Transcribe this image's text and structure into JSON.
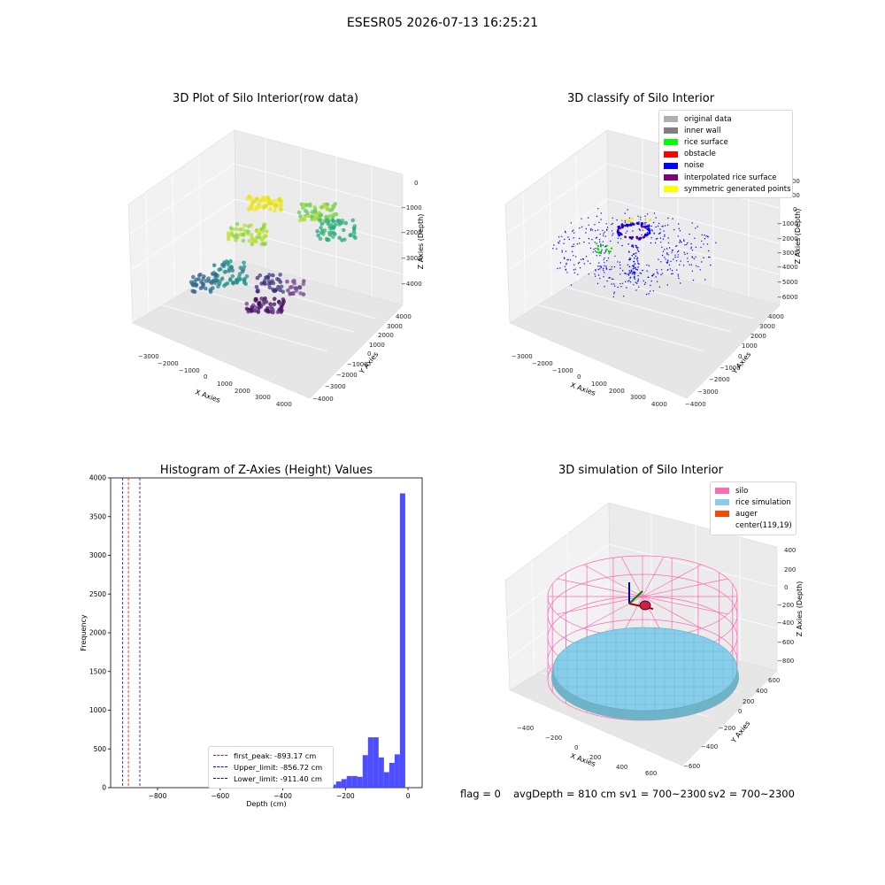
{
  "suptitle": "ESESR05 2026-07-13 16:25:21",
  "panels": {
    "raw": {
      "title": "3D Plot of Silo Interior(row data)",
      "xlabel": "X Axies",
      "ylabel": "Y Axies",
      "zlabel": "Z Axies (Depth)",
      "xticks": [
        "−3000",
        "−2000",
        "−1000",
        "0",
        "1000",
        "2000",
        "3000",
        "4000"
      ],
      "yticks": [
        "−4000",
        "−3000",
        "−2000",
        "−1000",
        "0",
        "1000",
        "2000",
        "3000",
        "4000"
      ],
      "zticks": [
        "−4000",
        "−3000",
        "−2000",
        "−1000",
        "0"
      ]
    },
    "classify": {
      "title": "3D classify of Silo Interior",
      "xlabel": "X Axies",
      "ylabel": "Y Axies",
      "zlabel": "Z Axies (Depth)",
      "xticks": [
        "−3000",
        "−2000",
        "−1000",
        "0",
        "1000",
        "2000",
        "3000",
        "4000"
      ],
      "yticks": [
        "−4000",
        "−3000",
        "−2000",
        "−1000",
        "0",
        "1000",
        "2000",
        "3000",
        "4000"
      ],
      "zticks": [
        "−6000",
        "−5000",
        "−4000",
        "−3000",
        "−2000",
        "−1000",
        "0",
        "1000",
        "2000"
      ],
      "legend": [
        {
          "label": "original data",
          "color": "#b0b0b0"
        },
        {
          "label": "inner wall",
          "color": "#808080"
        },
        {
          "label": "rice surface",
          "color": "#00ff00"
        },
        {
          "label": "obstacle",
          "color": "#ff0000"
        },
        {
          "label": "noise",
          "color": "#0000ff"
        },
        {
          "label": "interpolated rice surface",
          "color": "#800080"
        },
        {
          "label": "symmetric generated points",
          "color": "#ffff00"
        }
      ]
    },
    "simulation": {
      "title": "3D simulation of Silo Interior",
      "xlabel": "X Axies",
      "ylabel": "Y Axies",
      "zlabel": "Z Axies (Depth)",
      "xticks": [
        "−400",
        "−200",
        "0",
        "200",
        "400",
        "600"
      ],
      "yticks": [
        "−600",
        "−400",
        "−200",
        "0",
        "200",
        "400",
        "600"
      ],
      "zticks": [
        "−800",
        "−600",
        "−400",
        "−200",
        "0",
        "200",
        "400"
      ],
      "legend": [
        {
          "label": "silo",
          "color": "#ff69b4"
        },
        {
          "label": "rice simulation",
          "color": "#87ceeb"
        },
        {
          "label": "auger",
          "color": "#ff4500"
        },
        {
          "label": "center(119,19)",
          "color": ""
        }
      ]
    }
  },
  "footer": {
    "flag": "flag = 0",
    "avg": "avgDepth = 810 cm",
    "sv1": "sv1 = 700~2300",
    "sv2": "sv2 = 700~2300"
  },
  "chart_data": {
    "type": "bar",
    "title": "Histogram of Z-Axies (Height) Values",
    "xlabel": "Depth (cm)",
    "ylabel": "Frequency",
    "xlim": [
      -950,
      45
    ],
    "ylim": [
      0,
      4000
    ],
    "xticks": [
      -800,
      -600,
      -400,
      -200,
      0
    ],
    "yticks": [
      0,
      500,
      1000,
      1500,
      2000,
      2500,
      3000,
      3500,
      4000
    ],
    "bar_color": "#4444ff",
    "bin_width": 17,
    "bins": [
      {
        "x": -400,
        "value": 15
      },
      {
        "x": -383,
        "value": 10
      },
      {
        "x": -366,
        "value": 5
      },
      {
        "x": -349,
        "value": 10
      },
      {
        "x": -332,
        "value": 10
      },
      {
        "x": -315,
        "value": 10
      },
      {
        "x": -298,
        "value": 10
      },
      {
        "x": -281,
        "value": 10
      },
      {
        "x": -264,
        "value": 20
      },
      {
        "x": -247,
        "value": 40
      },
      {
        "x": -230,
        "value": 80
      },
      {
        "x": -213,
        "value": 110
      },
      {
        "x": -196,
        "value": 150
      },
      {
        "x": -179,
        "value": 150
      },
      {
        "x": -162,
        "value": 140
      },
      {
        "x": -145,
        "value": 420
      },
      {
        "x": -128,
        "value": 650
      },
      {
        "x": -111,
        "value": 650
      },
      {
        "x": -94,
        "value": 390
      },
      {
        "x": -77,
        "value": 200
      },
      {
        "x": -60,
        "value": 320
      },
      {
        "x": -43,
        "value": 430
      },
      {
        "x": -26,
        "value": 3800
      }
    ],
    "vlines": [
      {
        "label": "first_peak: -893.17 cm",
        "x": -893.17,
        "color": "#ff0000"
      },
      {
        "label": "Upper_limit: -856.72 cm",
        "x": -856.72,
        "color": "#0000ff"
      },
      {
        "label": "Lower_limit: -911.40 cm",
        "x": -911.4,
        "color": "#0000ff"
      }
    ]
  }
}
